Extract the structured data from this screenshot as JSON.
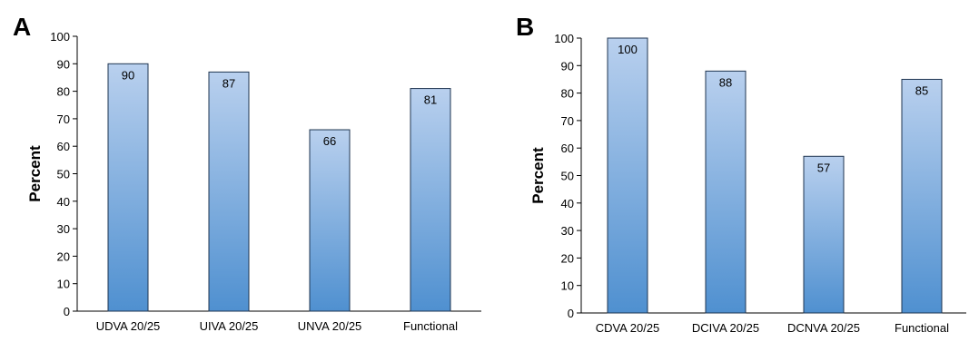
{
  "chart_data": [
    {
      "panel": "A",
      "type": "bar",
      "categories": [
        "UDVA 20/25",
        "UIVA 20/25",
        "UNVA 20/25",
        "Functional"
      ],
      "values": [
        90,
        87,
        66,
        81
      ],
      "data_labels": [
        "90",
        "87",
        "66",
        "81"
      ],
      "ylabel": "Percent",
      "xlabel": "",
      "ylim": [
        0,
        100
      ],
      "yticks": [
        0,
        10,
        20,
        30,
        40,
        50,
        60,
        70,
        80,
        90,
        100
      ],
      "grid": false,
      "legend": "none",
      "bar_color_top": "#b9d0ee",
      "bar_color_bottom": "#4f90d0",
      "bar_stroke": "#1f3550"
    },
    {
      "panel": "B",
      "type": "bar",
      "categories": [
        "CDVA 20/25",
        "DCIVA 20/25",
        "DCNVA 20/25",
        "Functional"
      ],
      "values": [
        100,
        88,
        57,
        85
      ],
      "data_labels": [
        "100",
        "88",
        "57",
        "85"
      ],
      "ylabel": "Percent",
      "xlabel": "",
      "ylim": [
        0,
        100
      ],
      "yticks": [
        0,
        10,
        20,
        30,
        40,
        50,
        60,
        70,
        80,
        90,
        100
      ],
      "grid": false,
      "legend": "none",
      "bar_color_top": "#b9d0ee",
      "bar_color_bottom": "#4f90d0",
      "bar_stroke": "#1f3550"
    }
  ]
}
